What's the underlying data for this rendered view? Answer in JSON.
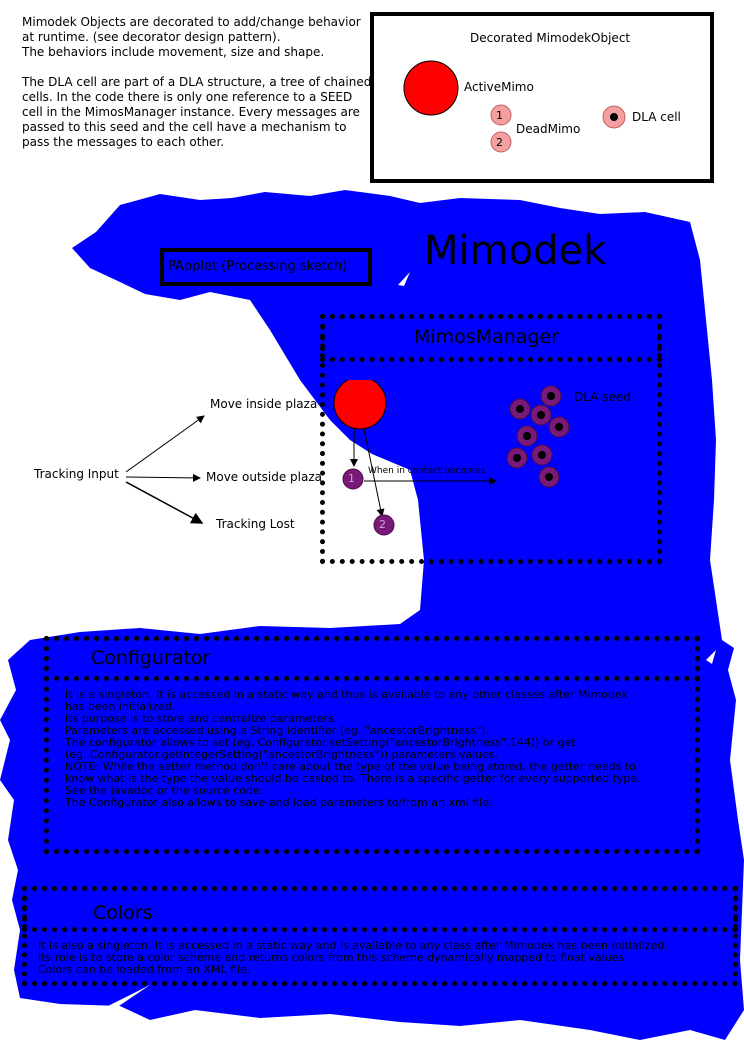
{
  "intro": {
    "p1": [
      "Mimodek Objects are decorated to add/change behavior",
      "at runtime. (see decorator design pattern).",
      "The behaviors include movement, size and shape."
    ],
    "p2": [
      "The DLA cell are part of a DLA structure, a tree of chained",
      "cells. In the code there is only one reference to a SEED",
      "cell in the MimosManager instance. Every messages are",
      "passed to this seed and the cell have a mechanism to",
      "pass the messages to each other."
    ]
  },
  "legend": {
    "title": "Decorated MimodekObject",
    "active": "ActiveMimo",
    "dead": "DeadMimo",
    "dead_num_1": "1",
    "dead_num_2": "2",
    "dla": "DLA cell"
  },
  "diagram": {
    "app_title": "Mimodek",
    "papplet": "PApplet (Processing sketch)",
    "manager": "MimosManager",
    "tracking_input": "Tracking Input",
    "move_inside": "Move inside plaza",
    "move_outside": "Move outside plaza",
    "tracking_lost": "Tracking Lost",
    "dla_seed": "DLA seed",
    "contact": "When in contact becomes",
    "mimo_1": "1",
    "mimo_2": "2"
  },
  "configurator": {
    "title": "Configurator",
    "lines": [
      "It is a singleton. It is accessed in a static way and thus is available to any other classes after Mimodek",
      "has been initialized.",
      "Its purpose is to store and centralize parameters.",
      "Parameters are accessed using a String identifier (eg. \"ancestorBrightness\").",
      "The configurator allows to set (eg. Configurator.setSetting(\"ancestorBrightness\",144)) or get",
      "(eg. Configurator.getIntegerSetting(\"ancestorBrightness\")) parameters values.",
      "NOTE: While the setter method don't care about the type of the value being stored, the getter needs to",
      "know what is the type the value should be casted to. There is a specific getter for every supported type.",
      "See the javadoc or the source code.",
      "The Configurator also allows to save and load parameters to/from an xml file."
    ]
  },
  "colors": {
    "title": "Colors",
    "lines": [
      "It is also a singleton. It is accessed in a static way and is available to any class after Mimodek has been initialized.",
      "Its role is to store a color scheme and returns colors from this scheme dynamically mapped to float values.",
      "Colors can be loaded from an XML file."
    ]
  },
  "palette": {
    "blob": "#0000ff",
    "active_mimo": "#ff0000",
    "dead_mimo_legend": "#f4a0a0",
    "dead_mimo_diagram": "#7a1a78",
    "dla_cell_legend": "#f4a0a0",
    "dla_cell_diagram": "#7a1a78"
  }
}
